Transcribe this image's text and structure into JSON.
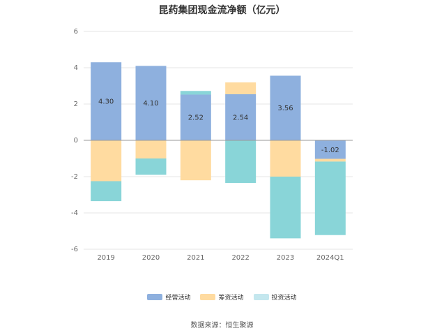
{
  "chart_data": {
    "type": "bar",
    "stacked": true,
    "title": "昆药集团现金流净额（亿元）",
    "xlabel": "",
    "ylabel": "",
    "categories": [
      "2019",
      "2020",
      "2021",
      "2022",
      "2023",
      "2024Q1"
    ],
    "y_ticks": [
      "6",
      "4",
      "2",
      "0",
      "-2",
      "-4",
      "-6"
    ],
    "ylim": [
      -6,
      6
    ],
    "grid": true,
    "legend_position": "bottom",
    "series": [
      {
        "name": "经营活动",
        "color": "#8EB0DE",
        "values": [
          4.3,
          4.1,
          2.52,
          2.54,
          3.56,
          -1.02
        ],
        "labels": [
          "4.30",
          "4.10",
          "2.52",
          "2.54",
          "3.56",
          "-1.02"
        ]
      },
      {
        "name": "筹资活动",
        "color": "#FFDBA0",
        "values": [
          -2.25,
          -1.0,
          -2.2,
          0.65,
          -2.0,
          -0.15
        ]
      },
      {
        "name": "投资活动",
        "color": "#89D5D8",
        "values": [
          -1.1,
          -0.9,
          0.2,
          -2.35,
          -3.4,
          -4.05
        ]
      }
    ],
    "source": "数据来源：恒生聚源"
  }
}
